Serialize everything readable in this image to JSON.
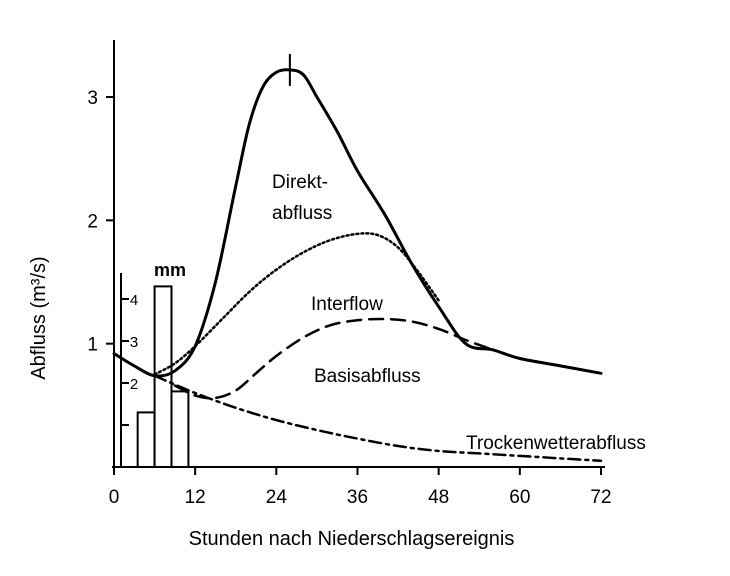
{
  "chart_data": {
    "type": "line",
    "xlabel": "Stunden nach Niederschlagsereignis",
    "ylabel": "Abfluss (m³/s)",
    "xlim": [
      0,
      72
    ],
    "ylim": [
      0,
      3.5
    ],
    "xticks": [
      0,
      12,
      24,
      36,
      48,
      60,
      72
    ],
    "yticks": [
      1,
      2,
      3
    ],
    "grid": false,
    "peak_marker": {
      "x": 26,
      "y": 3.22
    },
    "series": [
      {
        "name": "Direktabfluss",
        "label_lines": [
          "Direkt-",
          "abfluss"
        ],
        "style": "solid",
        "x": [
          0,
          3,
          6,
          9,
          12,
          15,
          18,
          20,
          22,
          24,
          26,
          28,
          30,
          33,
          36,
          40,
          44,
          48,
          52,
          56,
          60,
          66,
          72
        ],
        "y": [
          0.92,
          0.82,
          0.74,
          0.78,
          0.98,
          1.5,
          2.28,
          2.78,
          3.08,
          3.2,
          3.22,
          3.18,
          3.0,
          2.72,
          2.4,
          2.05,
          1.65,
          1.3,
          1.0,
          0.95,
          0.88,
          0.82,
          0.76
        ]
      },
      {
        "name": "Interflow",
        "label_lines": [
          "Interflow"
        ],
        "style": "dotted",
        "x": [
          6,
          9,
          12,
          16,
          20,
          24,
          28,
          32,
          36,
          39,
          42,
          45,
          48
        ],
        "y": [
          0.75,
          0.84,
          0.98,
          1.2,
          1.42,
          1.6,
          1.74,
          1.84,
          1.89,
          1.88,
          1.78,
          1.58,
          1.35
        ]
      },
      {
        "name": "Basisabfluss",
        "label_lines": [
          "Basisabfluss"
        ],
        "style": "dashed",
        "x": [
          9,
          12,
          15,
          18,
          21,
          24,
          28,
          32,
          36,
          40,
          44,
          48,
          52,
          56
        ],
        "y": [
          0.66,
          0.58,
          0.56,
          0.62,
          0.76,
          0.9,
          1.05,
          1.15,
          1.19,
          1.2,
          1.18,
          1.12,
          1.03,
          0.95
        ]
      },
      {
        "name": "Trockenwetterabfluss",
        "label_lines": [
          "Trockenwetterabfluss"
        ],
        "style": "dashdot",
        "x": [
          6,
          12,
          18,
          24,
          30,
          36,
          42,
          48,
          54,
          60,
          66,
          72
        ],
        "y": [
          0.74,
          0.6,
          0.48,
          0.38,
          0.3,
          0.23,
          0.17,
          0.13,
          0.11,
          0.09,
          0.07,
          0.05
        ]
      }
    ],
    "rainfall": {
      "unit": "mm",
      "axis_max": 4,
      "ticks": [
        2,
        3,
        4
      ],
      "bars": [
        {
          "x_start": 3.5,
          "x_end": 6,
          "value": 1.3
        },
        {
          "x_start": 6,
          "x_end": 8.5,
          "value": 4.3
        },
        {
          "x_start": 8.5,
          "x_end": 11,
          "value": 1.8
        }
      ]
    }
  }
}
